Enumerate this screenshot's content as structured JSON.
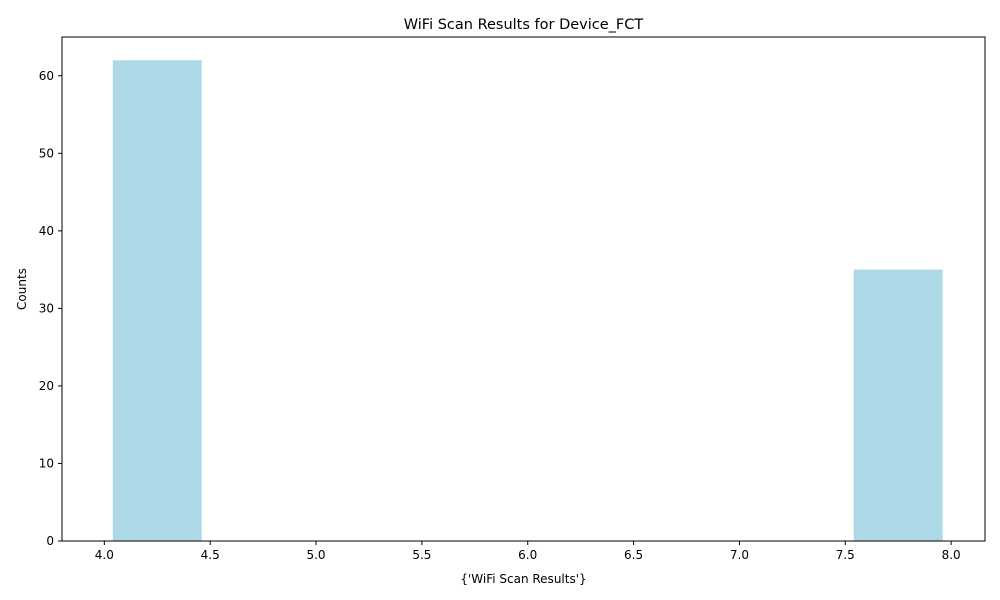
{
  "chart_data": {
    "type": "bar",
    "title": "WiFi Scan Results for Device_FCT",
    "xlabel": "{'WiFi Scan Results'}",
    "ylabel": "Counts",
    "bars": [
      {
        "x_start": 4.04,
        "x_end": 4.46,
        "value": 62
      },
      {
        "x_start": 7.54,
        "x_end": 7.96,
        "value": 35
      }
    ],
    "xlim": [
      3.8,
      8.16
    ],
    "ylim": [
      0,
      65
    ],
    "xticks": [
      4.0,
      4.5,
      5.0,
      5.5,
      6.0,
      6.5,
      7.0,
      7.5,
      8.0
    ],
    "xtick_labels": [
      "4.0",
      "4.5",
      "5.0",
      "5.5",
      "6.0",
      "6.5",
      "7.0",
      "7.5",
      "8.0"
    ],
    "yticks": [
      0,
      10,
      20,
      30,
      40,
      50,
      60
    ],
    "ytick_labels": [
      "0",
      "10",
      "20",
      "30",
      "40",
      "50",
      "60"
    ],
    "bar_color": "#add8e6",
    "grid": false,
    "legend": "none"
  }
}
